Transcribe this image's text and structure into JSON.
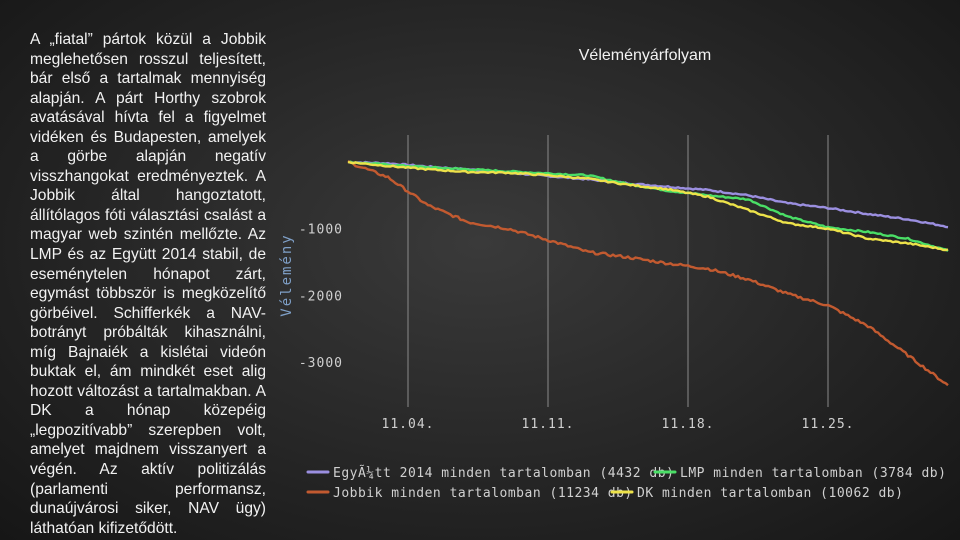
{
  "paragraph": "A „fiatal” pártok közül a Jobbik meglehetősen rosszul teljesített, bár első a tartalmak mennyiség alapján. A párt Horthy szobrok avatásával hívta fel a figyelmet vidéken és Budapesten, amelyek a görbe alapján negatív visszhangokat eredményeztek. A Jobbik által hangoztatott, állítólagos fóti választási csalást a magyar web szintén mellőzte. Az LMP és az Együtt 2014 stabil, de eseménytelen hónapot zárt, egymást többször is megközelítő görbéivel. Schifferkék a NAV-botrányt próbálták kihasználni, míg Bajnaiék a kislétai videón buktak el, ám mindkét eset alig hozott változást a tartalmakban. A DK a hónap közepéig „legpozitívabb” szerepben volt, amelyet majdnem visszanyert a végén. Az aktív politizálás (parlamenti performansz, dunaújvárosi siker, NAV ügy) láthatóan kifizetődött.",
  "chart_data": {
    "type": "line",
    "title": "Véleményárfolyam",
    "ylabel": "Vélemény",
    "xlabel": "",
    "x_ticks": [
      "11.04.",
      "11.11.",
      "11.18.",
      "11.25."
    ],
    "x_tick_days": [
      4,
      11,
      18,
      25
    ],
    "y_ticks": [
      "-1000",
      "-2000",
      "-3000"
    ],
    "y_tick_values": [
      -1000,
      -2000,
      -3000
    ],
    "xlim": [
      1,
      31
    ],
    "ylim": [
      -3600,
      150
    ],
    "grid": "vertical",
    "legend_position": "bottom",
    "series": [
      {
        "name": "EgyÃ¼tt 2014 minden tartalomban (4432 db)",
        "color": "#9b8fe0",
        "x": [
          1,
          3,
          5,
          7,
          9,
          11,
          13,
          15,
          17,
          19,
          21,
          23,
          25,
          27,
          29,
          31
        ],
        "y": [
          0,
          -20,
          -70,
          -110,
          -160,
          -210,
          -260,
          -320,
          -370,
          -420,
          -500,
          -620,
          -690,
          -780,
          -860,
          -970
        ]
      },
      {
        "name": "LMP minden tartalomban (3784 db)",
        "color": "#4ade66",
        "x": [
          1,
          3,
          5,
          7,
          9,
          11,
          13,
          15,
          17,
          19,
          21,
          23,
          25,
          27,
          29,
          31
        ],
        "y": [
          0,
          -40,
          -80,
          -110,
          -140,
          -170,
          -200,
          -330,
          -430,
          -500,
          -560,
          -820,
          -980,
          -1050,
          -1150,
          -1330
        ]
      },
      {
        "name": "Jobbik minden tartalomban (11234 db)",
        "color": "#c25a30",
        "x": [
          1,
          3,
          5,
          7,
          9,
          11,
          13,
          15,
          17,
          19,
          21,
          23,
          25,
          27,
          29,
          31
        ],
        "y": [
          0,
          -230,
          -650,
          -900,
          -1000,
          -1170,
          -1350,
          -1430,
          -1520,
          -1600,
          -1760,
          -1980,
          -2150,
          -2460,
          -2900,
          -3350
        ]
      },
      {
        "name": "DK minden tartalomban (10062 db)",
        "color": "#ede24a",
        "x": [
          1,
          3,
          5,
          7,
          9,
          11,
          13,
          15,
          17,
          19,
          21,
          23,
          25,
          27,
          29,
          31
        ],
        "y": [
          0,
          -60,
          -110,
          -150,
          -160,
          -200,
          -250,
          -340,
          -410,
          -520,
          -720,
          -920,
          -1000,
          -1150,
          -1220,
          -1320
        ]
      }
    ]
  }
}
